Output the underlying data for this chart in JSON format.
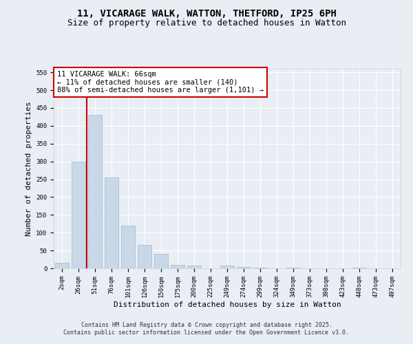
{
  "title_line1": "11, VICARAGE WALK, WATTON, THETFORD, IP25 6PH",
  "title_line2": "Size of property relative to detached houses in Watton",
  "xlabel": "Distribution of detached houses by size in Watton",
  "ylabel": "Number of detached properties",
  "bar_color": "#c8d8e8",
  "bar_edge_color": "#a0b8cc",
  "categories": [
    "2sqm",
    "26sqm",
    "51sqm",
    "76sqm",
    "101sqm",
    "126sqm",
    "150sqm",
    "175sqm",
    "200sqm",
    "225sqm",
    "249sqm",
    "274sqm",
    "299sqm",
    "324sqm",
    "349sqm",
    "373sqm",
    "398sqm",
    "423sqm",
    "448sqm",
    "473sqm",
    "497sqm"
  ],
  "values": [
    15,
    300,
    430,
    255,
    120,
    65,
    40,
    10,
    8,
    0,
    8,
    4,
    1,
    0,
    1,
    0,
    0,
    0,
    1,
    0,
    0
  ],
  "vline_x": 1.5,
  "vline_color": "#cc0000",
  "ylim": [
    0,
    560
  ],
  "yticks": [
    0,
    50,
    100,
    150,
    200,
    250,
    300,
    350,
    400,
    450,
    500,
    550
  ],
  "annotation_title": "11 VICARAGE WALK: 66sqm",
  "annotation_line2": "← 11% of detached houses are smaller (140)",
  "annotation_line3": "88% of semi-detached houses are larger (1,101) →",
  "bg_color": "#e8eef4",
  "plot_bg_color": "#e8eef4",
  "footer_line1": "Contains HM Land Registry data © Crown copyright and database right 2025.",
  "footer_line2": "Contains public sector information licensed under the Open Government Licence v3.0.",
  "title_fontsize": 10,
  "subtitle_fontsize": 9,
  "xlabel_fontsize": 8,
  "ylabel_fontsize": 8,
  "tick_fontsize": 6.5,
  "annotation_fontsize": 7.5,
  "footer_fontsize": 6
}
